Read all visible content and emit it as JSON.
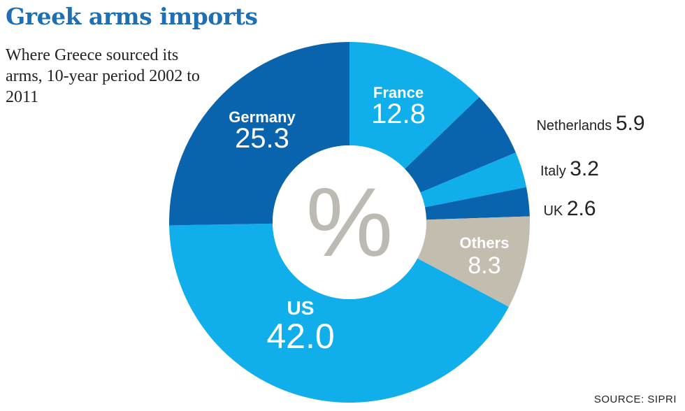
{
  "header": {
    "title": "Greek arms imports",
    "subtitle": "Where Greece sourced its arms, 10-year period 2002 to 2011"
  },
  "footer": {
    "source": "SOURCE: SIPRI"
  },
  "chart_data": {
    "type": "pie",
    "style": "donut",
    "center_label": "%",
    "unit": "%",
    "slices": [
      {
        "name": "France",
        "value": 12.8,
        "color": "#10aeea"
      },
      {
        "name": "Netherlands",
        "value": 5.9,
        "color": "#0a64ad"
      },
      {
        "name": "Italy",
        "value": 3.2,
        "color": "#10aeea"
      },
      {
        "name": "UK",
        "value": 2.6,
        "color": "#0a64ad"
      },
      {
        "name": "Others",
        "value": 8.3,
        "color": "#c3bdb0"
      },
      {
        "name": "US",
        "value": 42.0,
        "color": "#10aeea"
      },
      {
        "name": "Germany",
        "value": 25.3,
        "color": "#0a64ad"
      }
    ],
    "center_color": "#bdbab4"
  }
}
